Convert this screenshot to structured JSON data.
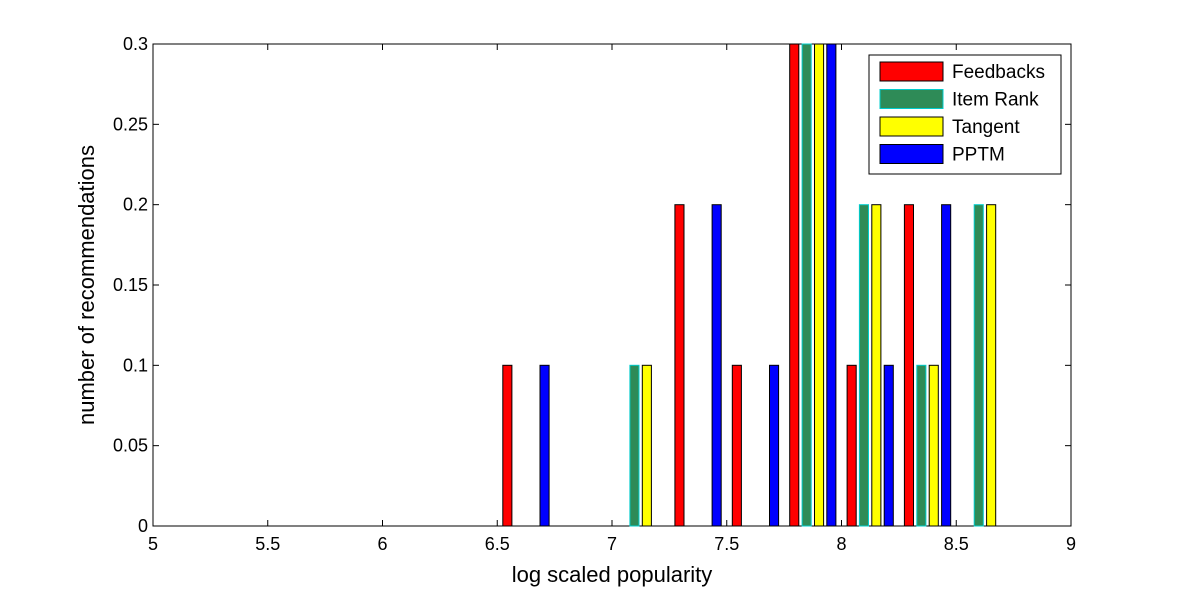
{
  "chart_data": {
    "type": "bar",
    "xlabel": "log scaled popularity",
    "ylabel": "number of recommendations",
    "xlim": [
      5,
      9
    ],
    "ylim": [
      0,
      0.3
    ],
    "x_ticks": [
      "5",
      "5.5",
      "6",
      "6.5",
      "7",
      "7.5",
      "8",
      "8.5",
      "9"
    ],
    "y_ticks": [
      "0",
      "0.05",
      "0.1",
      "0.15",
      "0.2",
      "0.25",
      "0.3"
    ],
    "legend_position": "top-right",
    "categories": [
      5.125,
      5.375,
      5.625,
      5.875,
      6.125,
      6.375,
      6.625,
      6.875,
      7.125,
      7.375,
      7.625,
      7.875,
      8.125,
      8.375,
      8.625,
      8.875
    ],
    "series": [
      {
        "name": "Feedbacks",
        "color": "#ff0000",
        "values": [
          0,
          0,
          0,
          0,
          0,
          0,
          0.1,
          0,
          0,
          0.2,
          0.1,
          0.3,
          0.1,
          0.2,
          0,
          0
        ]
      },
      {
        "name": "Item Rank",
        "color": "#2e8b57",
        "edge": "#00cccc",
        "values": [
          0,
          0,
          0,
          0,
          0,
          0,
          0,
          0,
          0.1,
          0,
          0,
          0.3,
          0.2,
          0.1,
          0.2,
          0
        ]
      },
      {
        "name": "Tangent",
        "color": "#ffff00",
        "values": [
          0,
          0,
          0,
          0,
          0,
          0,
          0,
          0,
          0.1,
          0,
          0,
          0.3,
          0.2,
          0.1,
          0.2,
          0
        ]
      },
      {
        "name": "PPTM",
        "color": "#0000ff",
        "values": [
          0,
          0,
          0,
          0,
          0,
          0,
          0.1,
          0,
          0,
          0.2,
          0.1,
          0.3,
          0.1,
          0.2,
          0,
          0
        ]
      }
    ]
  }
}
